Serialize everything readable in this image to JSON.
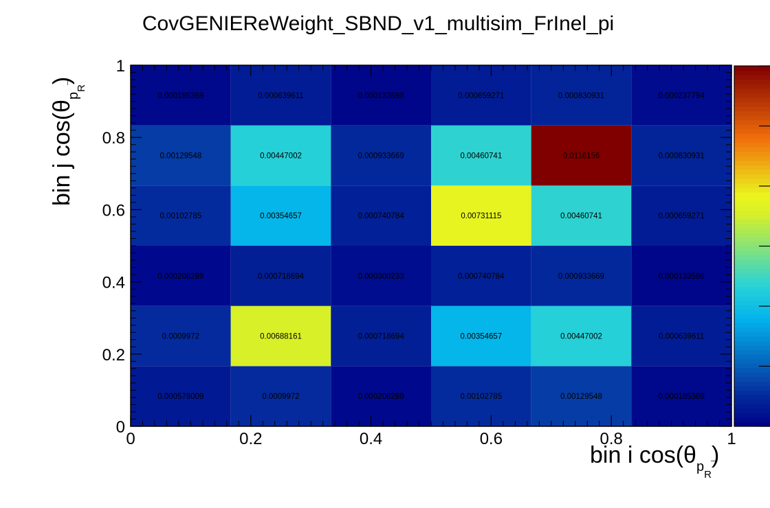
{
  "chart_data": {
    "type": "heatmap",
    "title": "CovGENIEReWeight_SBND_v1_multisim_FrInel_pi",
    "xlabel": {
      "main": "bin i cos(θ",
      "sub": "p",
      "arrow": "→",
      "subsub": "R",
      "close": ")"
    },
    "ylabel": {
      "main": "bin j cos(θ",
      "sub": "p",
      "arrow": "→",
      "subsub": "R",
      "close": ")"
    },
    "xlim": [
      0,
      1
    ],
    "ylim": [
      0,
      1
    ],
    "x_ticks": [
      "0",
      "0.2",
      "0.4",
      "0.6",
      "0.8",
      "1"
    ],
    "y_ticks": [
      "0",
      "0.2",
      "0.4",
      "0.6",
      "0.8",
      "1"
    ],
    "x_edges": [
      0,
      0.1667,
      0.3333,
      0.5,
      0.6667,
      0.8333,
      1
    ],
    "y_edges": [
      0,
      0.1667,
      0.3333,
      0.5,
      0.6667,
      0.8333,
      1
    ],
    "z_range": [
      0,
      0.0116156
    ],
    "cells": [
      [
        "0.000578009",
        "0.0009972",
        "0.000208289",
        "0.00102785",
        "0.00129548",
        "0.000185369"
      ],
      [
        "0.0009972",
        "0.00688161",
        "0.000718694",
        "0.00354657",
        "0.00447002",
        "0.000639611"
      ],
      [
        "0.000208289",
        "0.000718694",
        "0.000300233",
        "0.000740784",
        "0.000933669",
        "0.000133598"
      ],
      [
        "0.00102785",
        "0.00354657",
        "0.000740784",
        "0.00731115",
        "0.00460741",
        "0.000659271"
      ],
      [
        "0.00129548",
        "0.00447002",
        "0.000933669",
        "0.00460741",
        "0.0116156",
        "0.000830931"
      ],
      [
        "0.000185369",
        "0.000639611",
        "0.000133598",
        "0.000659271",
        "0.000830931",
        "0.000237794"
      ]
    ],
    "colorscale": "rainbow",
    "grid": false,
    "legend": "colorbar-right"
  }
}
